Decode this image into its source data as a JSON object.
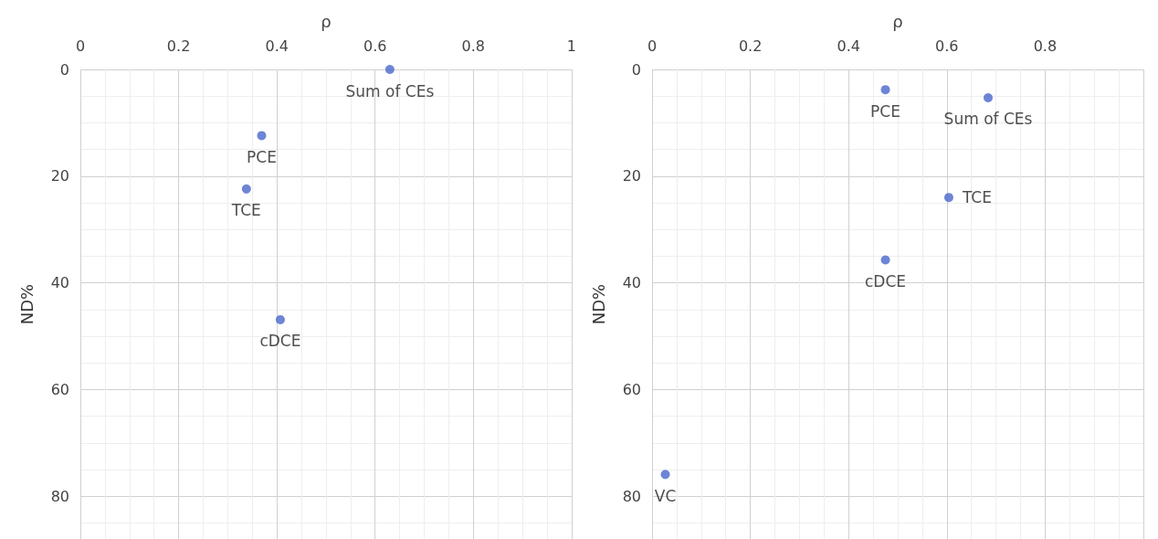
{
  "chart_data": [
    {
      "type": "scatter",
      "xlabel": "ρ",
      "ylabel": "ND%",
      "xlim": [
        0,
        1
      ],
      "xticks": [
        0,
        0.2,
        0.4,
        0.6,
        0.8,
        1
      ],
      "ylim": [
        88,
        0
      ],
      "yticks": [
        0,
        20,
        40,
        60,
        80
      ],
      "grid": true,
      "marker": "circle",
      "legend": false,
      "series": [
        {
          "name": "Sum of CEs",
          "color": "#4a66cc",
          "x": [
            0.63
          ],
          "values": [
            0
          ]
        },
        {
          "name": "PCE",
          "color": "#4a66cc",
          "x": [
            0.369
          ],
          "values": [
            12.4
          ]
        },
        {
          "name": "TCE",
          "color": "#4a66cc",
          "x": [
            0.338
          ],
          "values": [
            22.4
          ]
        },
        {
          "name": "cDCE",
          "color": "#4a66cc",
          "x": [
            0.407
          ],
          "values": [
            46.9
          ]
        }
      ]
    },
    {
      "type": "scatter",
      "xlabel": "ρ",
      "ylabel": "ND%",
      "xlim": [
        0,
        1
      ],
      "xticks": [
        0,
        0.2,
        0.4,
        0.6,
        0.8,
        {
          "value": 1,
          "label": null
        }
      ],
      "ylim": [
        88,
        0
      ],
      "yticks": [
        0,
        20,
        40,
        60,
        80
      ],
      "grid": true,
      "marker": "circle",
      "legend": false,
      "series": [
        {
          "name": "PCE",
          "color": "#4a66cc",
          "x": [
            0.475
          ],
          "values": [
            3.8
          ]
        },
        {
          "name": "Sum of CEs",
          "color": "#4a66cc",
          "x": [
            0.684
          ],
          "values": [
            5.3
          ]
        },
        {
          "name": "TCE",
          "color": "#4a66cc",
          "x": [
            0.604
          ],
          "values": [
            24
          ]
        },
        {
          "name": "cDCE",
          "color": "#4a66cc",
          "x": [
            0.475
          ],
          "values": [
            35.7
          ]
        },
        {
          "name": "VC",
          "color": "#4a66cc",
          "x": [
            0.027
          ],
          "values": [
            75.9
          ]
        }
      ]
    }
  ]
}
